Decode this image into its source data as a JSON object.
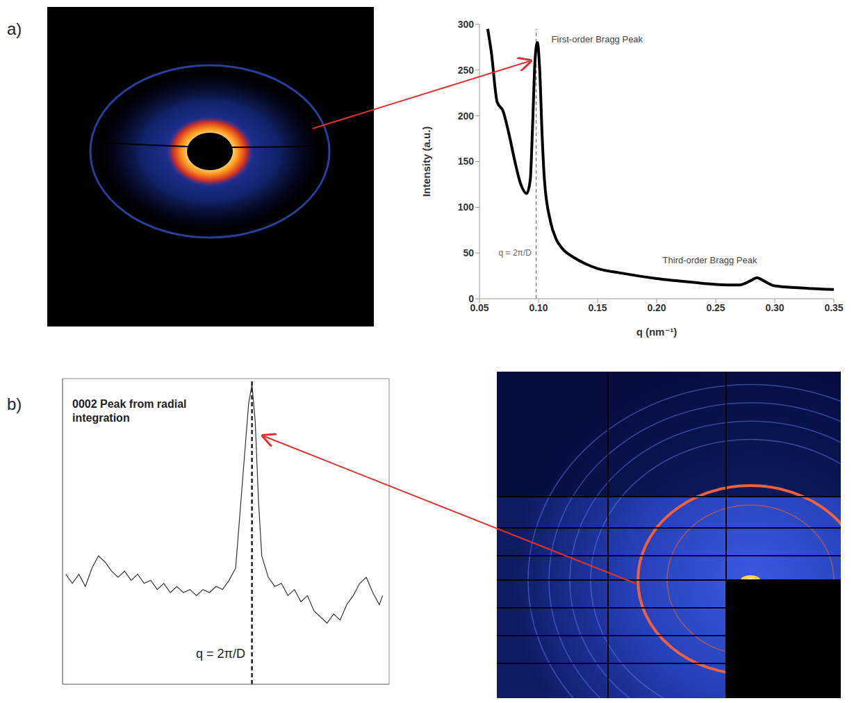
{
  "chart_data": [
    {
      "panel_label": "a)",
      "type": "line",
      "x_label": "q (nm⁻¹)",
      "y_label": "Intensity (a.u.)",
      "x": [
        0.057,
        0.06,
        0.065,
        0.07,
        0.075,
        0.08,
        0.085,
        0.09,
        0.093,
        0.095,
        0.097,
        0.099,
        0.101,
        0.103,
        0.105,
        0.11,
        0.115,
        0.12,
        0.13,
        0.14,
        0.15,
        0.17,
        0.2,
        0.23,
        0.26,
        0.27,
        0.28,
        0.285,
        0.29,
        0.3,
        0.32,
        0.35
      ],
      "values": [
        295,
        270,
        215,
        205,
        180,
        150,
        125,
        115,
        130,
        190,
        260,
        280,
        250,
        180,
        130,
        85,
        65,
        55,
        45,
        38,
        33,
        28,
        22,
        18,
        15,
        15,
        20,
        23,
        20,
        14,
        12,
        10
      ],
      "color": "#000000",
      "xlim": [
        0.05,
        0.35
      ],
      "xticks": [
        0.05,
        {
          "value": 0.1,
          "label": "0.10"
        },
        0.15,
        {
          "value": 0.2,
          "label": "0.20"
        },
        0.25,
        {
          "value": 0.3,
          "label": "0.30"
        },
        0.35
      ],
      "ylim": [
        0,
        300
      ],
      "yticks": [
        0,
        50,
        100,
        150,
        200,
        250,
        300
      ],
      "grid": false,
      "reference_x": 0.098,
      "annotations": [
        {
          "text": "First-order Bragg Peak",
          "x": 0.108,
          "y": 284
        },
        {
          "text": "Third-order Bragg Peak",
          "x": 0.245,
          "y": 42
        },
        {
          "text": "q = 2π/D",
          "x": 0.097,
          "y": 50
        }
      ]
    },
    {
      "panel_label": "b)",
      "type": "line",
      "title": "0002 Peak from radial integration",
      "x": [
        1,
        3,
        5,
        7,
        9,
        11,
        13,
        15,
        17,
        19,
        21,
        23,
        25,
        27,
        29,
        31,
        33,
        35,
        37,
        39,
        41,
        43,
        45,
        47,
        49,
        51,
        53,
        55,
        57,
        58,
        59,
        60,
        61,
        63,
        65,
        67,
        69,
        71,
        73,
        75,
        77,
        79,
        81,
        83,
        85,
        87,
        89,
        91,
        93,
        95,
        97,
        98
      ],
      "values": [
        3.6,
        3.3,
        3.6,
        3.2,
        3.8,
        4.2,
        4.0,
        3.7,
        3.5,
        3.7,
        3.4,
        3.6,
        3.3,
        3.4,
        3.1,
        3.3,
        3.0,
        3.2,
        3.0,
        3.1,
        2.9,
        3.1,
        3.0,
        3.2,
        3.1,
        3.4,
        3.8,
        6.5,
        9.2,
        9.8,
        8.6,
        6.0,
        4.2,
        3.5,
        3.2,
        3.3,
        2.9,
        3.1,
        2.7,
        2.9,
        2.4,
        2.2,
        2.0,
        2.3,
        2.1,
        2.6,
        2.9,
        3.3,
        3.5,
        3.0,
        2.6,
        2.9
      ],
      "color": "#333333",
      "xlim": [
        0,
        100
      ],
      "ylim": [
        0,
        10
      ],
      "tick_labels": false,
      "reference_x": 58,
      "annotations": [
        {
          "text": "q = 2π/D",
          "x": 57,
          "y": 1
        }
      ]
    }
  ]
}
